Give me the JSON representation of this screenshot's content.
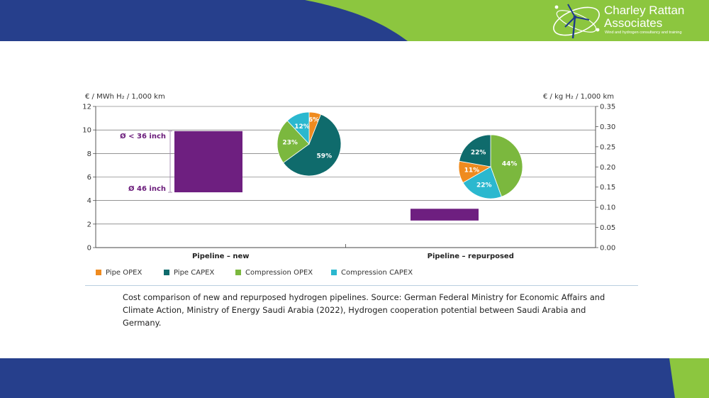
{
  "brand": {
    "name": "Charley Rattan",
    "sub": "Associates",
    "tagline": "Wind and hydrogen consultancy and training"
  },
  "colors": {
    "navy": "#263f8c",
    "lime": "#8cc63f",
    "purple": "#6e1f80",
    "pipe_opex": "#ef8b1f",
    "pipe_capex": "#0f6b6c",
    "compression_opex": "#7bb83e",
    "compression_capex": "#2bb8cf"
  },
  "chart_data": {
    "type": "bar",
    "categories": [
      "Pipeline – new",
      "Pipeline – repurposed"
    ],
    "left_axis": {
      "label": "€ / MWh H₂ / 1,000 km",
      "range": [
        0,
        12
      ],
      "ticks": [
        "0",
        "2",
        "4",
        "6",
        "8",
        "10",
        "12"
      ],
      "tick_values": [
        0,
        2,
        4,
        6,
        8,
        10,
        12
      ]
    },
    "right_axis": {
      "label": "€ / kg H₂ / 1,000 km",
      "range": [
        0,
        0.35
      ],
      "ticks": [
        "0.00",
        "0.05",
        "0.10",
        "0.15",
        "0.20",
        "0.25",
        "0.30",
        "0.35"
      ],
      "tick_values": [
        0,
        0.05,
        0.1,
        0.15,
        0.2,
        0.25,
        0.3,
        0.35
      ]
    },
    "bars": [
      {
        "category": "Pipeline – new",
        "low": 4.7,
        "high": 9.9
      },
      {
        "category": "Pipeline – repurposed",
        "low": 2.3,
        "high": 3.3
      }
    ],
    "range_annotation": {
      "top": "Ø < 36 inch",
      "bottom": "Ø 46 inch"
    },
    "pies": [
      {
        "category": "Pipeline – new",
        "slices": [
          {
            "name": "Pipe OPEX",
            "value": 6,
            "label": "6%"
          },
          {
            "name": "Pipe CAPEX",
            "value": 59,
            "label": "59%"
          },
          {
            "name": "Compression OPEX",
            "value": 23,
            "label": "23%"
          },
          {
            "name": "Compression CAPEX",
            "value": 12,
            "label": "12%"
          }
        ]
      },
      {
        "category": "Pipeline – repurposed",
        "slices": [
          {
            "name": "Compression OPEX",
            "value": 44,
            "label": "44%"
          },
          {
            "name": "Compression CAPEX",
            "value": 22,
            "label": "22%"
          },
          {
            "name": "Pipe OPEX",
            "value": 11,
            "label": "11%"
          },
          {
            "name": "Pipe CAPEX",
            "value": 22,
            "label": "22%"
          }
        ]
      }
    ],
    "legend": [
      "Pipe OPEX",
      "Pipe CAPEX",
      "Compression OPEX",
      "Compression CAPEX"
    ],
    "legend_placement": "bottom",
    "grid": true
  },
  "caption": "Cost comparison of new and repurposed hydrogen pipelines. Source: German Federal Ministry for Economic Affairs and Climate Action, Ministry of Energy Saudi Arabia (2022), Hydrogen cooperation potential between Saudi Arabia and Germany."
}
